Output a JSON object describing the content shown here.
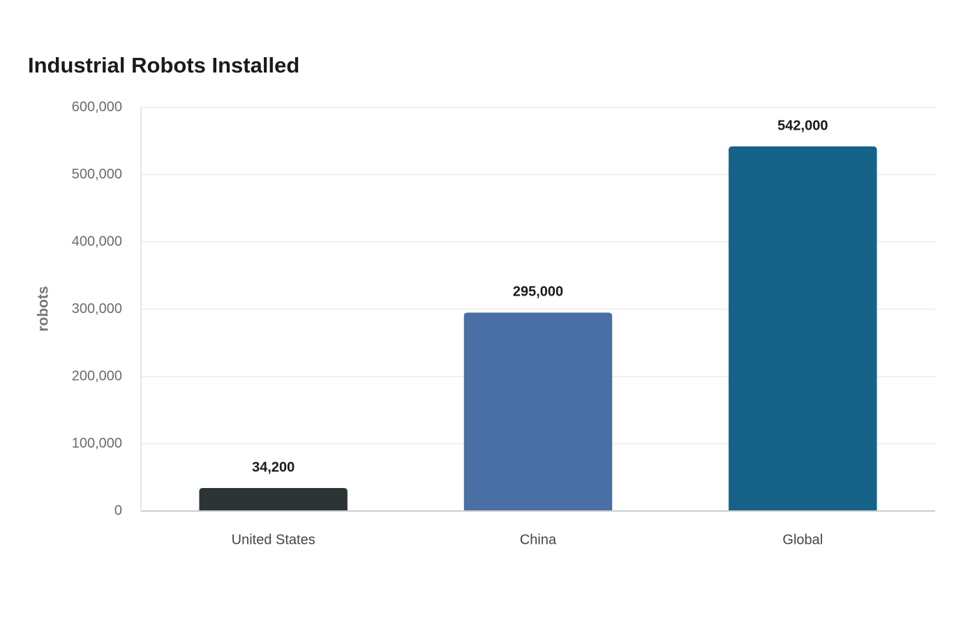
{
  "chart_data": {
    "type": "bar",
    "title": "Industrial Robots Installed",
    "y_label": "robots",
    "categories": [
      "United States",
      "China",
      "Global"
    ],
    "values": [
      34200,
      295000,
      542000
    ],
    "value_labels": [
      "34,200",
      "295,000",
      "542,000"
    ],
    "colors": [
      "#2d3436",
      "#4a6fa5",
      "#166288"
    ],
    "ylim": [
      0,
      600000
    ],
    "yticks": [
      0,
      {
        "value": 100000,
        "label": "100,000"
      },
      {
        "value": 200000,
        "label": "200,000"
      },
      {
        "value": 300000,
        "label": "300,000"
      },
      {
        "value": 400000,
        "label": "400,000"
      },
      {
        "value": 500000,
        "label": "500,000"
      },
      {
        "value": 600000,
        "label": "600,000"
      }
    ],
    "grid": true
  }
}
